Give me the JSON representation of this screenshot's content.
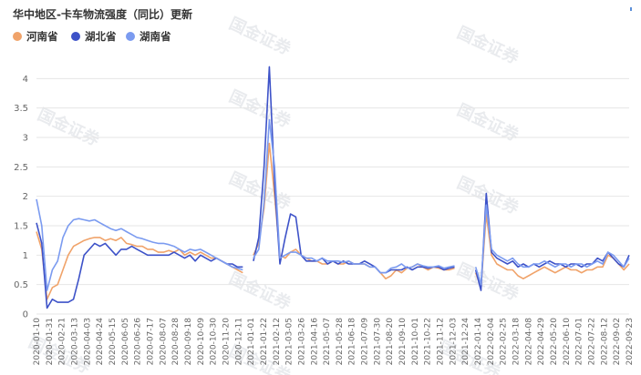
{
  "chart_data": {
    "type": "line",
    "title": "华中地区-卡车物流强度（同比）更新",
    "ylim": [
      0,
      4.5
    ],
    "yticks": [
      0,
      0.5,
      1,
      1.5,
      2,
      2.5,
      3,
      3.5,
      4
    ],
    "grid": "horizontal",
    "legend": "top-left",
    "watermark": "国金证券",
    "x_ticks": [
      "2020-01-10",
      "2020-01-31",
      "2020-02-21",
      "2020-03-13",
      "2020-04-03",
      "2020-04-24",
      "2020-05-15",
      "2020-06-05",
      "2020-06-26",
      "2020-07-17",
      "2020-08-07",
      "2020-08-28",
      "2020-09-18",
      "2020-10-09",
      "2020-10-30",
      "2020-11-20",
      "2020-12-11",
      "2021-01-01",
      "2021-01-22",
      "2021-02-12",
      "2021-03-05",
      "2021-03-26",
      "2021-04-16",
      "2021-05-07",
      "2021-05-28",
      "2021-06-18",
      "2021-07-09",
      "2021-07-30",
      "2021-08-20",
      "2021-09-10",
      "2021-10-01",
      "2021-10-22",
      "2021-11-12",
      "2021-12-03",
      "2021-12-24",
      "2022-01-14",
      "2022-02-04",
      "2022-02-25",
      "2022-03-18",
      "2022-04-08",
      "2022-04-29",
      "2022-05-20",
      "2022-06-10",
      "2022-07-01",
      "2022-07-22",
      "2022-08-12",
      "2022-09-02",
      "2022-09-23"
    ],
    "series": [
      {
        "name": "河南省",
        "color": "#f0a36a",
        "values": [
          1.4,
          1.1,
          0.25,
          0.45,
          0.5,
          0.75,
          1.0,
          1.15,
          1.2,
          1.25,
          1.28,
          1.3,
          1.3,
          1.25,
          1.28,
          1.25,
          1.3,
          1.2,
          1.18,
          1.15,
          1.15,
          1.1,
          1.1,
          1.05,
          1.05,
          1.08,
          1.05,
          1.1,
          1.0,
          1.05,
          1.0,
          1.05,
          1.0,
          0.95,
          0.95,
          0.9,
          0.85,
          0.8,
          0.75,
          0.7,
          null,
          1.0,
          1.2,
          1.8,
          2.9,
          2.0,
          1.0,
          0.95,
          1.05,
          1.1,
          1.0,
          0.95,
          0.9,
          0.9,
          0.85,
          0.85,
          0.9,
          0.85,
          0.85,
          0.9,
          0.85,
          0.85,
          0.85,
          0.8,
          0.8,
          0.7,
          0.6,
          0.65,
          0.75,
          0.7,
          0.78,
          0.8,
          0.85,
          0.8,
          0.75,
          0.8,
          0.78,
          0.75,
          0.75,
          0.78,
          null,
          null,
          null,
          0.7,
          0.45,
          1.7,
          1.0,
          0.85,
          0.8,
          0.75,
          0.75,
          0.65,
          0.6,
          0.65,
          0.7,
          0.75,
          0.8,
          0.75,
          0.7,
          0.75,
          0.8,
          0.75,
          0.75,
          0.7,
          0.75,
          0.75,
          0.8,
          0.8,
          1.0,
          0.95,
          0.85,
          0.75,
          0.85
        ]
      },
      {
        "name": "湖北省",
        "color": "#3d52c8",
        "values": [
          1.55,
          1.2,
          0.1,
          0.25,
          0.2,
          0.2,
          0.2,
          0.25,
          0.6,
          1.0,
          1.1,
          1.2,
          1.15,
          1.2,
          1.1,
          1.0,
          1.1,
          1.1,
          1.15,
          1.1,
          1.05,
          1.0,
          1.0,
          1.0,
          1.0,
          1.0,
          1.05,
          1.0,
          0.95,
          1.0,
          0.9,
          1.0,
          0.95,
          0.9,
          0.95,
          0.9,
          0.85,
          0.85,
          0.8,
          0.8,
          null,
          0.9,
          1.3,
          2.5,
          4.2,
          2.2,
          0.85,
          1.3,
          1.7,
          1.65,
          1.0,
          0.9,
          0.9,
          0.9,
          0.95,
          0.85,
          0.9,
          0.85,
          0.9,
          0.85,
          0.85,
          0.85,
          0.9,
          0.85,
          0.8,
          0.7,
          0.7,
          0.75,
          0.75,
          0.75,
          0.8,
          0.75,
          0.8,
          0.8,
          0.78,
          0.8,
          0.8,
          0.75,
          0.78,
          0.8,
          null,
          null,
          null,
          0.75,
          0.4,
          2.05,
          1.05,
          0.95,
          0.9,
          0.85,
          0.9,
          0.8,
          0.85,
          0.8,
          0.85,
          0.8,
          0.85,
          0.9,
          0.85,
          0.85,
          0.8,
          0.85,
          0.85,
          0.8,
          0.85,
          0.85,
          0.95,
          0.9,
          1.05,
          0.95,
          0.85,
          0.8,
          1.0
        ]
      },
      {
        "name": "湖南省",
        "color": "#7b9bf0",
        "values": [
          1.95,
          1.5,
          0.4,
          0.75,
          0.9,
          1.3,
          1.5,
          1.6,
          1.62,
          1.6,
          1.58,
          1.6,
          1.55,
          1.5,
          1.45,
          1.42,
          1.45,
          1.4,
          1.35,
          1.3,
          1.28,
          1.25,
          1.22,
          1.2,
          1.2,
          1.18,
          1.15,
          1.1,
          1.05,
          1.1,
          1.08,
          1.1,
          1.05,
          1.0,
          0.95,
          0.9,
          0.85,
          0.8,
          0.78,
          0.75,
          null,
          0.95,
          1.1,
          1.9,
          3.3,
          2.5,
          0.95,
          1.0,
          1.05,
          1.05,
          1.0,
          0.95,
          0.95,
          0.9,
          0.95,
          0.9,
          0.9,
          0.9,
          0.88,
          0.9,
          0.85,
          0.85,
          0.85,
          0.8,
          0.8,
          0.7,
          0.7,
          0.78,
          0.8,
          0.85,
          0.78,
          0.8,
          0.85,
          0.82,
          0.8,
          0.8,
          0.82,
          0.78,
          0.8,
          0.82,
          null,
          null,
          null,
          0.8,
          0.5,
          1.85,
          1.1,
          1.0,
          0.95,
          0.9,
          0.95,
          0.85,
          0.8,
          0.8,
          0.85,
          0.85,
          0.9,
          0.85,
          0.8,
          0.85,
          0.85,
          0.8,
          0.85,
          0.85,
          0.8,
          0.85,
          0.9,
          0.85,
          1.05,
          1.0,
          0.9,
          0.8,
          0.95
        ]
      }
    ]
  }
}
